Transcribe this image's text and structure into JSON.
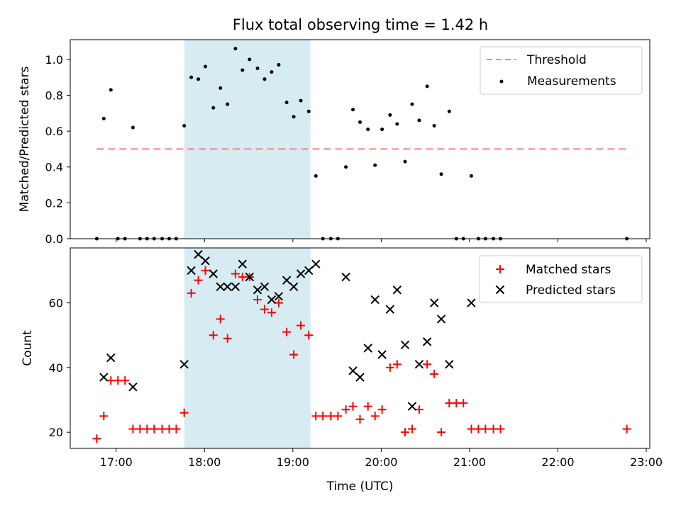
{
  "figure": {
    "title": "Flux total observing time = 1.42 h",
    "xlabel": "Time (UTC)",
    "x_tick_labels": [
      "17:00",
      "18:00",
      "19:00",
      "20:00",
      "21:00",
      "22:00",
      "23:00"
    ],
    "x_ticks_hours": [
      17,
      18,
      19,
      20,
      21,
      22,
      23
    ],
    "xlim_hours": [
      16.48,
      23.04
    ],
    "shaded_span_hours": [
      17.77,
      19.2
    ],
    "shade_color": "#add8e6"
  },
  "chart_data": [
    {
      "type": "scatter",
      "ylabel": "Matched/Predicted stars",
      "ylim": [
        0,
        1.11
      ],
      "y_ticks": [
        0.0,
        0.2,
        0.4,
        0.6,
        0.8,
        1.0
      ],
      "y_tick_labels": [
        "0.0",
        "0.2",
        "0.4",
        "0.6",
        "0.8",
        "1.0"
      ],
      "legend": {
        "placement": "top-right"
      },
      "threshold": {
        "name": "Threshold",
        "value": 0.5,
        "x_range_hours": [
          16.78,
          22.78
        ],
        "color": "#ff7f7f",
        "style": "dashed"
      },
      "series": [
        {
          "name": "Measurements",
          "marker": "dot",
          "color": "#000000",
          "x_hours": [
            16.78,
            16.86,
            16.94,
            17.02,
            17.1,
            17.19,
            17.27,
            17.35,
            17.43,
            17.52,
            17.6,
            17.68,
            17.77,
            17.85,
            17.93,
            18.01,
            18.1,
            18.18,
            18.26,
            18.35,
            18.43,
            18.51,
            18.6,
            18.68,
            18.76,
            18.84,
            18.93,
            19.01,
            19.09,
            19.18,
            19.26,
            19.34,
            19.43,
            19.51,
            19.6,
            19.68,
            19.76,
            19.85,
            19.93,
            20.01,
            20.1,
            20.18,
            20.27,
            20.35,
            20.43,
            20.52,
            20.6,
            20.68,
            20.77,
            20.85,
            20.93,
            21.02,
            21.1,
            21.18,
            21.27,
            21.35,
            22.78
          ],
          "y": [
            0.0,
            0.67,
            0.83,
            0.0,
            0.0,
            0.62,
            0.0,
            0.0,
            0.0,
            0.0,
            0.0,
            0.0,
            0.63,
            0.9,
            0.89,
            0.96,
            0.73,
            0.84,
            0.75,
            1.06,
            0.94,
            1.0,
            0.95,
            0.89,
            0.93,
            0.97,
            0.76,
            0.68,
            0.77,
            0.71,
            0.35,
            0.0,
            0.0,
            0.0,
            0.4,
            0.72,
            0.65,
            0.61,
            0.41,
            0.61,
            0.69,
            0.64,
            0.43,
            0.75,
            0.66,
            0.85,
            0.63,
            0.36,
            0.71,
            0.0,
            0.0,
            0.35,
            0.0,
            0.0,
            0.0,
            0.0,
            0.0
          ]
        }
      ]
    },
    {
      "type": "scatter",
      "ylabel": "Count",
      "ylim": [
        15,
        77
      ],
      "y_ticks": [
        20,
        40,
        60
      ],
      "y_tick_labels": [
        "20",
        "40",
        "60"
      ],
      "legend": {
        "placement": "top-right"
      },
      "series": [
        {
          "name": "Matched stars",
          "marker": "plus",
          "color": "#ff0000",
          "x_hours": [
            16.78,
            16.86,
            16.94,
            17.02,
            17.1,
            17.19,
            17.27,
            17.35,
            17.43,
            17.52,
            17.6,
            17.68,
            17.77,
            17.85,
            17.93,
            18.01,
            18.1,
            18.18,
            18.26,
            18.35,
            18.43,
            18.51,
            18.6,
            18.68,
            18.76,
            18.84,
            18.93,
            19.01,
            19.09,
            19.18,
            19.26,
            19.34,
            19.43,
            19.51,
            19.6,
            19.68,
            19.76,
            19.85,
            19.93,
            20.01,
            20.1,
            20.18,
            20.27,
            20.35,
            20.43,
            20.52,
            20.6,
            20.68,
            20.77,
            20.85,
            20.93,
            21.02,
            21.1,
            21.18,
            21.27,
            21.35,
            22.78
          ],
          "y": [
            18,
            25,
            36,
            36,
            36,
            21,
            21,
            21,
            21,
            21,
            21,
            21,
            26,
            63,
            67,
            70,
            50,
            55,
            49,
            69,
            68,
            68,
            61,
            58,
            57,
            60,
            51,
            44,
            53,
            50,
            25,
            25,
            25,
            25,
            27,
            28,
            24,
            28,
            25,
            27,
            40,
            41,
            20,
            21,
            27,
            41,
            38,
            20,
            29,
            29,
            29,
            21,
            21,
            21,
            21,
            21,
            21
          ]
        },
        {
          "name": "Predicted stars",
          "marker": "x",
          "color": "#000000",
          "x_hours": [
            16.86,
            16.94,
            17.19,
            17.77,
            17.85,
            17.93,
            18.01,
            18.1,
            18.18,
            18.26,
            18.35,
            18.43,
            18.51,
            18.6,
            18.68,
            18.76,
            18.84,
            18.93,
            19.01,
            19.09,
            19.18,
            19.26,
            19.6,
            19.68,
            19.76,
            19.85,
            19.93,
            20.01,
            20.1,
            20.18,
            20.27,
            20.35,
            20.43,
            20.52,
            20.6,
            20.68,
            20.77,
            21.02
          ],
          "y": [
            37,
            43,
            34,
            41,
            70,
            75,
            73,
            69,
            65,
            65,
            65,
            72,
            68,
            64,
            65,
            61,
            62,
            67,
            65,
            69,
            70,
            72,
            68,
            39,
            37,
            46,
            61,
            44,
            58,
            64,
            47,
            28,
            41,
            48,
            60,
            55,
            41,
            60
          ]
        }
      ]
    }
  ]
}
